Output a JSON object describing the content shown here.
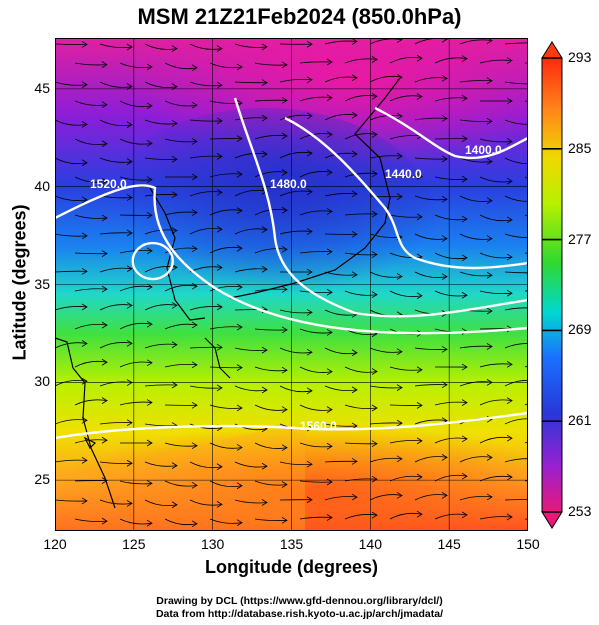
{
  "title": "MSM 21Z21Feb2024 (850.0hPa)",
  "x_axis": {
    "label": "Longitude (degrees)",
    "ticks": [
      "120",
      "125",
      "130",
      "135",
      "140",
      "145",
      "150"
    ]
  },
  "y_axis": {
    "label": "Latitude  (degrees)",
    "ticks": [
      "45",
      "40",
      "35",
      "30",
      "25"
    ]
  },
  "map": {
    "lon_range": [
      120,
      150
    ],
    "lat_range": [
      22.4,
      47.6
    ],
    "field": "temperature (K) shaded, geopotential height contours, wind streamlines"
  },
  "contours": [
    {
      "label": "1400.0"
    },
    {
      "label": "1440.0"
    },
    {
      "label": "1480.0"
    },
    {
      "label": "1520.0"
    },
    {
      "label": "1560.0"
    }
  ],
  "colorbar": {
    "min": 253,
    "max": 293,
    "ticks": [
      "293",
      "285",
      "277",
      "269",
      "261",
      "253"
    ],
    "colors": [
      "#e0186a",
      "#9a20d0",
      "#2840e0",
      "#1070ff",
      "#00d8d8",
      "#30d830",
      "#c0f000",
      "#f0e000",
      "#ff9a10",
      "#ff3a10"
    ]
  },
  "credits": {
    "line1": "Drawing by DCL (https://www.gfd-dennou.org/library/dcl/)",
    "line2": "Data from http://database.rish.kyoto-u.ac.jp/arch/jmadata/"
  }
}
